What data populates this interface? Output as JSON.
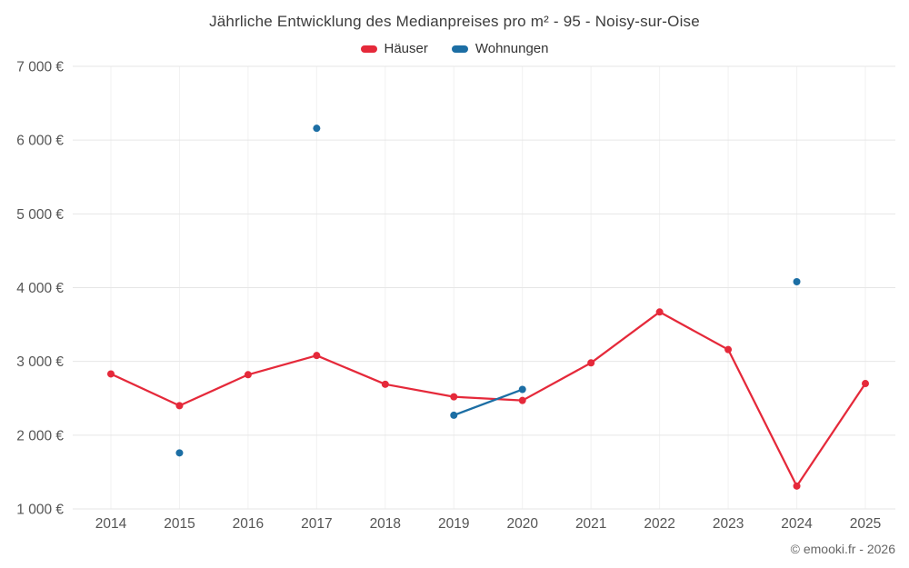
{
  "title": "Jährliche Entwicklung des Medianpreises pro m² - 95 - Noisy-sur-Oise",
  "copyright": "© emooki.fr - 2026",
  "chart_data": {
    "type": "line",
    "categories": [
      "2014",
      "2015",
      "2016",
      "2017",
      "2018",
      "2019",
      "2020",
      "2021",
      "2022",
      "2023",
      "2024",
      "2025"
    ],
    "series": [
      {
        "name": "Häuser",
        "color": "#e5293a",
        "values": [
          2830,
          2400,
          2820,
          3080,
          2690,
          2520,
          2470,
          2980,
          3670,
          3160,
          1310,
          2700
        ]
      },
      {
        "name": "Wohnungen",
        "color": "#1c6ea4",
        "values": [
          null,
          1760,
          null,
          6160,
          null,
          2270,
          2620,
          null,
          null,
          null,
          4080,
          null
        ]
      }
    ],
    "ylim": [
      1000,
      7000
    ],
    "yticks": [
      1000,
      2000,
      3000,
      4000,
      5000,
      6000,
      7000
    ],
    "ytick_suffix": " €",
    "grid": true,
    "legend_position": "top"
  }
}
